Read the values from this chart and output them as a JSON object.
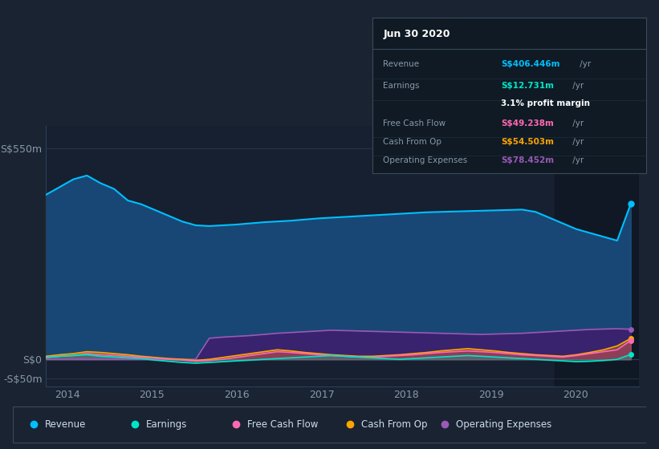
{
  "bg_color": "#1a2332",
  "plot_bg_color": "#162030",
  "darker_bg": "#0d1520",
  "title": "Jun 30 2020",
  "table": {
    "Revenue": {
      "label": "S$406.446m /yr",
      "color": "#00bfff"
    },
    "Earnings": {
      "label": "S$12.731m /yr",
      "color": "#00e5c8"
    },
    "profit_margin": {
      "label": "3.1% profit margin",
      "color": "#ffffff"
    },
    "Free Cash Flow": {
      "label": "S$49.238m /yr",
      "color": "#ff69b4"
    },
    "Cash From Op": {
      "label": "S$54.503m /yr",
      "color": "#ffa500"
    },
    "Operating Expenses": {
      "label": "S$78.452m /yr",
      "color": "#9b59b6"
    }
  },
  "ylabel_top": "S$550m",
  "ylabel_zero": "S$0",
  "ylabel_neg": "-S$50m",
  "ylim": [
    -70,
    610
  ],
  "legend": [
    {
      "label": "Revenue",
      "color": "#00bfff"
    },
    {
      "label": "Earnings",
      "color": "#00e5c8"
    },
    {
      "label": "Free Cash Flow",
      "color": "#ff69b4"
    },
    {
      "label": "Cash From Op",
      "color": "#ffa500"
    },
    {
      "label": "Operating Expenses",
      "color": "#9b59b6"
    }
  ],
  "x_years": [
    2014,
    2015,
    2016,
    2017,
    2018,
    2019,
    2020
  ],
  "revenue": [
    430,
    450,
    470,
    480,
    460,
    445,
    415,
    405,
    390,
    375,
    360,
    350,
    348,
    350,
    352,
    355,
    358,
    360,
    362,
    365,
    368,
    370,
    372,
    374,
    376,
    378,
    380,
    382,
    384,
    385,
    386,
    387,
    388,
    389,
    390,
    391,
    385,
    370,
    355,
    340,
    330,
    320,
    310,
    406
  ],
  "earnings": [
    5,
    8,
    10,
    12,
    8,
    6,
    4,
    2,
    -2,
    -5,
    -8,
    -10,
    -8,
    -6,
    -4,
    -2,
    0,
    2,
    4,
    6,
    8,
    10,
    8,
    6,
    4,
    2,
    0,
    2,
    4,
    6,
    8,
    10,
    8,
    6,
    4,
    2,
    0,
    -2,
    -4,
    -6,
    -5,
    -3,
    0,
    12.7
  ],
  "free_cash_flow": [
    5,
    8,
    10,
    15,
    12,
    10,
    8,
    5,
    3,
    0,
    -2,
    -5,
    -3,
    0,
    5,
    10,
    15,
    20,
    18,
    15,
    12,
    10,
    8,
    6,
    5,
    8,
    10,
    12,
    15,
    18,
    20,
    22,
    20,
    18,
    15,
    12,
    10,
    8,
    6,
    10,
    15,
    20,
    25,
    49.2
  ],
  "cash_from_op": [
    8,
    12,
    15,
    20,
    18,
    15,
    12,
    8,
    5,
    2,
    0,
    -3,
    0,
    5,
    10,
    15,
    20,
    25,
    22,
    18,
    15,
    12,
    10,
    8,
    8,
    10,
    12,
    15,
    18,
    22,
    25,
    28,
    25,
    22,
    18,
    15,
    12,
    10,
    8,
    12,
    18,
    25,
    35,
    54.5
  ],
  "operating_expenses": [
    0,
    0,
    0,
    0,
    0,
    0,
    0,
    0,
    0,
    0,
    0,
    0,
    55,
    58,
    60,
    62,
    65,
    68,
    70,
    72,
    74,
    76,
    75,
    74,
    73,
    72,
    71,
    70,
    69,
    68,
    67,
    66,
    65,
    66,
    67,
    68,
    70,
    72,
    74,
    76,
    78,
    79,
    80,
    78.4
  ]
}
